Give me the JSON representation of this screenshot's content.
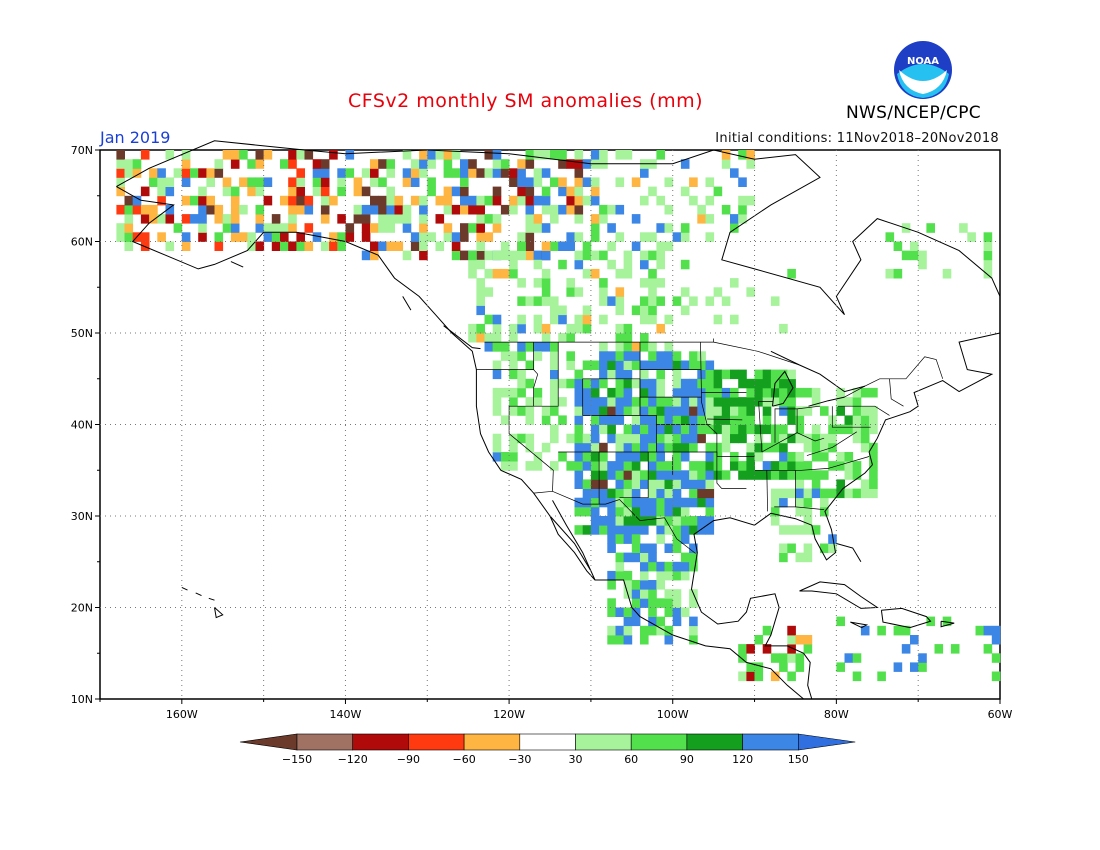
{
  "title": "CFSv2 monthly SM anomalies (mm)",
  "valid_month": "Jan 2019",
  "initial_conditions": "Initial conditions: 11Nov2018–20Nov2018",
  "agency": "NWS/NCEP/CPC",
  "logo_text": "NOAA",
  "map": {
    "projection": "equirectangular",
    "lon_range": [
      -170,
      -60
    ],
    "lat_range": [
      10,
      70
    ],
    "lat_ticks": [
      "10N",
      "20N",
      "30N",
      "40N",
      "50N",
      "60N",
      "70N"
    ],
    "lon_ticks": [
      "160W",
      "140W",
      "120W",
      "100W",
      "80W",
      "60W"
    ],
    "gridlines": "dotted"
  },
  "colorbar": {
    "labels": [
      "−150",
      "−120",
      "−90",
      "−60",
      "−30",
      "30",
      "60",
      "90",
      "120",
      "150"
    ],
    "colors": [
      "#6b3a2a",
      "#a07264",
      "#b00a0a",
      "#ff3a10",
      "#ffb541",
      "#ffffff",
      "#a6f39c",
      "#52e04c",
      "#14a01e",
      "#3c86e6",
      "#2f6fe0"
    ]
  },
  "colors": {
    "title": "#e8000b",
    "month": "#1a3fd6"
  }
}
